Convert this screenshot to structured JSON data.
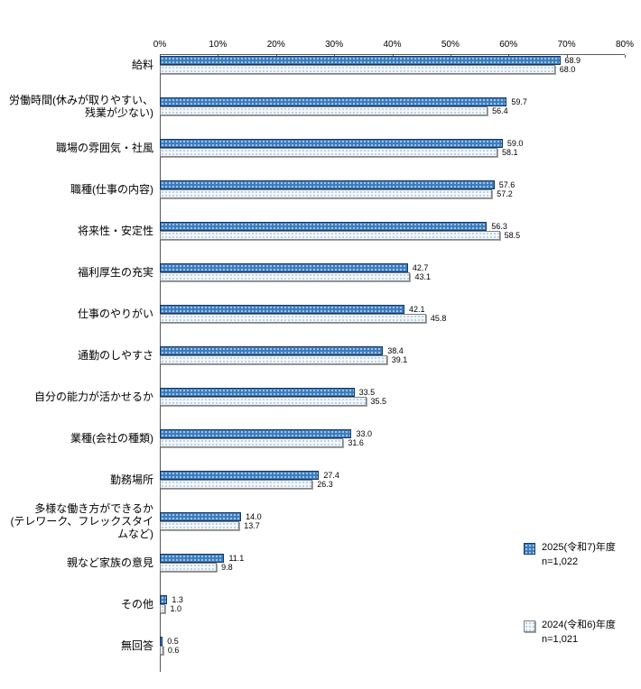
{
  "chart_data": {
    "type": "bar",
    "orientation": "horizontal",
    "title": "",
    "xlabel": "",
    "ylabel": "",
    "xlim": [
      0,
      80
    ],
    "x_ticks": [
      "0%",
      "10%",
      "20%",
      "30%",
      "40%",
      "50%",
      "60%",
      "70%",
      "80%"
    ],
    "grid": false,
    "legend_position": "right-bottom",
    "categories": [
      "給料",
      "労働時間(休みが取りやすい、\n残業が少ない)",
      "職場の雰囲気・社風",
      "職種(仕事の内容)",
      "将来性・安定性",
      "福利厚生の充実",
      "仕事のやりがい",
      "通勤のしやすさ",
      "自分の能力が活かせるか",
      "業種(会社の種類)",
      "勤務場所",
      "多様な働き方ができるか\n(テレワーク、フレックスタイムなど)",
      "親など家族の意見",
      "その他",
      "無回答"
    ],
    "series": [
      {
        "name": "2025(令和7)年度",
        "sample": "n=1,022",
        "values": [
          68.9,
          59.7,
          59.0,
          57.6,
          56.3,
          42.7,
          42.1,
          38.4,
          33.5,
          33.0,
          27.4,
          14.0,
          11.1,
          1.3,
          0.5
        ]
      },
      {
        "name": "2024(令和6)年度",
        "sample": "n=1,021",
        "values": [
          68.0,
          56.4,
          58.1,
          57.2,
          58.5,
          43.1,
          45.8,
          39.1,
          35.5,
          31.6,
          26.3,
          13.7,
          9.8,
          1.0,
          0.6
        ]
      }
    ],
    "colors": {
      "series_2025_fill": "#3d7cc0",
      "series_2025_dot": "#a9cbe9",
      "series_2025_border": "#17375e",
      "series_2024_fill": "#f2f7fb",
      "series_2024_dot": "#b7cfe4",
      "series_2024_border": "#808080",
      "axis": "#595959",
      "text": "#000000"
    }
  }
}
